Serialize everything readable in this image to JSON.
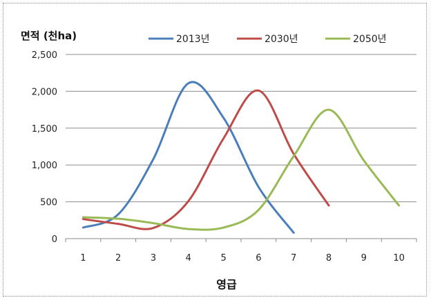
{
  "chart_data": {
    "type": "line",
    "title": "",
    "ylabel": "면적 (천ha)",
    "xlabel": "영급",
    "categories": [
      "1",
      "2",
      "3",
      "4",
      "5",
      "6",
      "7",
      "8",
      "9",
      "10"
    ],
    "y_ticks": [
      "0",
      "500",
      "1,000",
      "1,500",
      "2,000",
      "2,500"
    ],
    "ylim": [
      0,
      2500
    ],
    "grid": true,
    "legend_position": "top",
    "series": [
      {
        "name": "2013년",
        "color": "#4a7ebb",
        "x": [
          1,
          2,
          3,
          4,
          5,
          6,
          7
        ],
        "values": [
          150,
          330,
          1080,
          2110,
          1640,
          700,
          80
        ]
      },
      {
        "name": "2030년",
        "color": "#be4b48",
        "x": [
          1,
          2,
          3,
          4,
          5,
          6,
          7,
          8
        ],
        "values": [
          265,
          200,
          145,
          510,
          1360,
          2010,
          1150,
          450
        ]
      },
      {
        "name": "2050년",
        "color": "#98b954",
        "x": [
          1,
          2,
          3,
          4,
          5,
          6,
          7,
          8,
          9,
          10
        ],
        "values": [
          290,
          270,
          210,
          130,
          150,
          390,
          1120,
          1750,
          1060,
          450
        ]
      }
    ]
  }
}
